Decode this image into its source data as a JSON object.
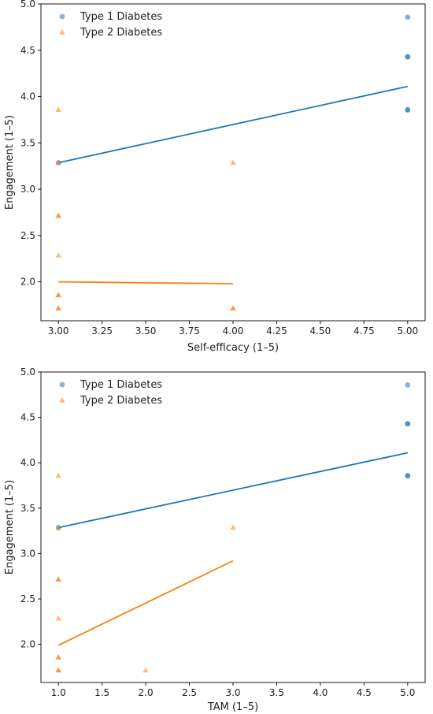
{
  "chart_data": [
    {
      "type": "scatter",
      "title": "",
      "xlabel": "Self-efficacy (1–5)",
      "ylabel": "Engagement (1–5)",
      "xlim": [
        2.9,
        5.1
      ],
      "ylim": [
        1.58,
        5.0
      ],
      "xticks": [
        3.0,
        3.25,
        3.5,
        3.75,
        4.0,
        4.25,
        4.5,
        4.75,
        5.0
      ],
      "xtick_labels": [
        "3.00",
        "3.25",
        "3.50",
        "3.75",
        "4.00",
        "4.25",
        "4.50",
        "4.75",
        "5.00"
      ],
      "yticks": [
        2.0,
        2.5,
        3.0,
        3.5,
        4.0,
        4.5,
        5.0
      ],
      "ytick_labels": [
        "2.0",
        "2.5",
        "3.0",
        "3.5",
        "4.0",
        "4.5",
        "5.0"
      ],
      "grid": false,
      "legend_position": "top-left",
      "series": [
        {
          "name": "Type 1 Diabetes",
          "marker": "circle",
          "color": "#1f77b4",
          "points": [
            [
              3.0,
              3.286
            ],
            [
              5.0,
              4.857
            ],
            [
              5.0,
              4.429
            ],
            [
              5.0,
              4.429
            ],
            [
              5.0,
              3.857
            ],
            [
              5.0,
              3.857
            ]
          ],
          "fit": [
            [
              3.0,
              3.286
            ],
            [
              5.0,
              4.11
            ]
          ]
        },
        {
          "name": "Type 2 Diabetes",
          "marker": "triangle",
          "color": "#ff7f0e",
          "points": [
            [
              3.0,
              3.857
            ],
            [
              3.0,
              3.286
            ],
            [
              3.0,
              2.714
            ],
            [
              3.0,
              2.714
            ],
            [
              3.0,
              2.286
            ],
            [
              3.0,
              1.857
            ],
            [
              3.0,
              1.857
            ],
            [
              3.0,
              1.714
            ],
            [
              3.0,
              1.714
            ],
            [
              4.0,
              3.286
            ],
            [
              4.0,
              1.714
            ],
            [
              4.0,
              1.714
            ]
          ],
          "fit": [
            [
              3.0,
              2.0
            ],
            [
              4.0,
              1.98
            ]
          ]
        }
      ]
    },
    {
      "type": "scatter",
      "title": "",
      "xlabel": "TAM (1–5)",
      "ylabel": "Engagement (1–5)",
      "xlim": [
        0.8,
        5.2
      ],
      "ylim": [
        1.58,
        5.0
      ],
      "xticks": [
        1.0,
        1.5,
        2.0,
        2.5,
        3.0,
        3.5,
        4.0,
        4.5,
        5.0
      ],
      "xtick_labels": [
        "1.0",
        "1.5",
        "2.0",
        "2.5",
        "3.0",
        "3.5",
        "4.0",
        "4.5",
        "5.0"
      ],
      "yticks": [
        2.0,
        2.5,
        3.0,
        3.5,
        4.0,
        4.5,
        5.0
      ],
      "ytick_labels": [
        "2.0",
        "2.5",
        "3.0",
        "3.5",
        "4.0",
        "4.5",
        "5.0"
      ],
      "grid": false,
      "legend_position": "top-left",
      "series": [
        {
          "name": "Type 1 Diabetes",
          "marker": "circle",
          "color": "#1f77b4",
          "points": [
            [
              1.0,
              3.286
            ],
            [
              5.0,
              4.857
            ],
            [
              5.0,
              4.429
            ],
            [
              5.0,
              4.429
            ],
            [
              5.0,
              3.857
            ],
            [
              5.0,
              3.857
            ]
          ],
          "fit": [
            [
              1.0,
              3.286
            ],
            [
              5.0,
              4.11
            ]
          ]
        },
        {
          "name": "Type 2 Diabetes",
          "marker": "triangle",
          "color": "#ff7f0e",
          "points": [
            [
              1.0,
              3.857
            ],
            [
              1.0,
              3.286
            ],
            [
              1.0,
              2.714
            ],
            [
              1.0,
              2.714
            ],
            [
              1.0,
              2.286
            ],
            [
              1.0,
              1.857
            ],
            [
              1.0,
              1.857
            ],
            [
              1.0,
              1.714
            ],
            [
              1.0,
              1.714
            ],
            [
              3.0,
              3.286
            ],
            [
              2.0,
              1.714
            ]
          ],
          "fit": [
            [
              1.0,
              1.99
            ],
            [
              3.0,
              2.92
            ]
          ]
        }
      ]
    }
  ]
}
